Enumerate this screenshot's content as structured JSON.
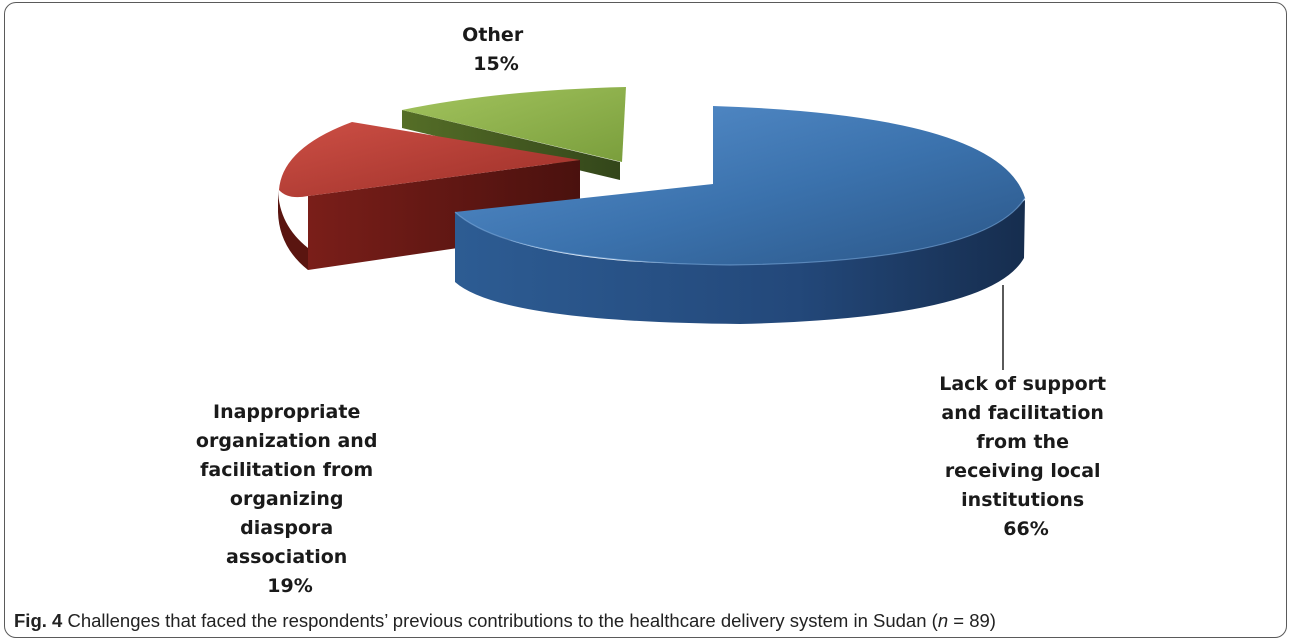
{
  "chart_data": {
    "type": "pie",
    "slices": [
      {
        "label_lines": [
          "Lack of support",
          "and facilitation",
          "from the",
          "receiving local",
          "institutions"
        ],
        "value_text": "66%",
        "value": 66,
        "color": "#3c73ad"
      },
      {
        "label_lines": [
          "Inappropriate",
          "organization and",
          "facilitation from",
          "organizing",
          "diaspora",
          "association"
        ],
        "value_text": "19%",
        "value": 19,
        "color": "#b23a33"
      },
      {
        "label_lines": [
          "Other"
        ],
        "value_text": "15%",
        "value": 15,
        "color": "#8fb44c"
      }
    ]
  },
  "caption": {
    "fig_label": "Fig. 4",
    "text_before_n": " Challenges that faced the respondents’ previous contributions to the healthcare delivery system in Sudan (",
    "n_symbol": "n",
    "n_rest": " = 89)"
  }
}
